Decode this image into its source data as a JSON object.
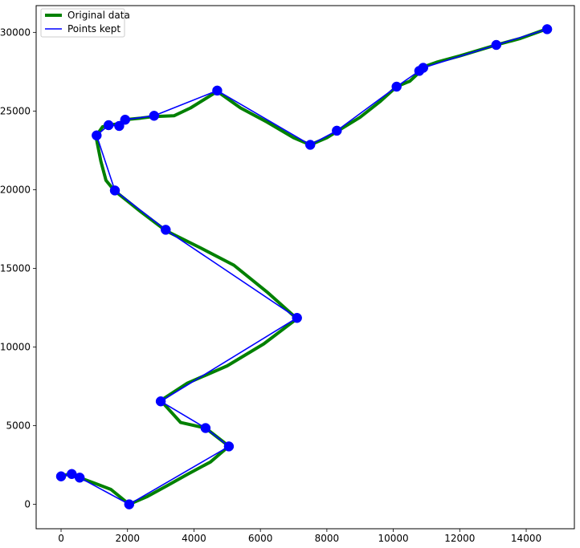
{
  "chart_data": {
    "type": "line",
    "title": "",
    "xlabel": "",
    "ylabel": "",
    "xlim": [
      -750,
      15450
    ],
    "ylim": [
      -1550,
      31700
    ],
    "xticks": [
      0,
      2000,
      4000,
      6000,
      8000,
      10000,
      12000,
      14000
    ],
    "yticks": [
      0,
      5000,
      10000,
      15000,
      20000,
      25000,
      30000
    ],
    "grid": false,
    "legend": {
      "position": "top-left"
    },
    "colors": {
      "original": "#008000",
      "kept": "#0000ff",
      "marker": "#0000ff"
    },
    "series": [
      {
        "name": "Original data",
        "style": "thick-line",
        "x": [
          0,
          300,
          550,
          1000,
          1500,
          2050,
          2600,
          3200,
          3800,
          4500,
          5050,
          4350,
          3600,
          3000,
          3800,
          5000,
          6100,
          7100,
          6200,
          5200,
          4200,
          3150,
          2400,
          1600,
          1350,
          1200,
          1050,
          1250,
          1450,
          1750,
          1900,
          2400,
          2800,
          3400,
          3900,
          4700,
          5400,
          6200,
          7000,
          7500,
          8000,
          8300,
          9000,
          9600,
          10100,
          10500,
          10800,
          10900,
          11300,
          12000,
          13100,
          13800,
          14600,
          14700
        ],
        "y": [
          1800,
          1950,
          1700,
          1350,
          950,
          0,
          500,
          1200,
          1900,
          2700,
          3700,
          4850,
          5200,
          6600,
          7700,
          8800,
          10200,
          11800,
          13500,
          15200,
          16300,
          17400,
          18600,
          19950,
          20600,
          21800,
          23400,
          24000,
          24100,
          24200,
          24450,
          24550,
          24650,
          24700,
          25200,
          26250,
          25200,
          24300,
          23300,
          22850,
          23300,
          23700,
          24600,
          25600,
          26550,
          26900,
          27500,
          27800,
          28100,
          28500,
          29200,
          29600,
          30200,
          30200
        ]
      },
      {
        "name": "Points kept",
        "style": "line-with-markers",
        "x": [
          0,
          320,
          560,
          2050,
          5050,
          4350,
          3000,
          7100,
          3150,
          1620,
          1070,
          1430,
          1750,
          1930,
          2800,
          4700,
          7500,
          8300,
          10100,
          10780,
          10900,
          13100,
          14630
        ],
        "y": [
          1780,
          1930,
          1700,
          0,
          3680,
          4850,
          6550,
          11850,
          17450,
          19950,
          23450,
          24100,
          24050,
          24450,
          24700,
          26300,
          22850,
          23750,
          26550,
          27550,
          27750,
          29200,
          30200
        ]
      }
    ]
  }
}
